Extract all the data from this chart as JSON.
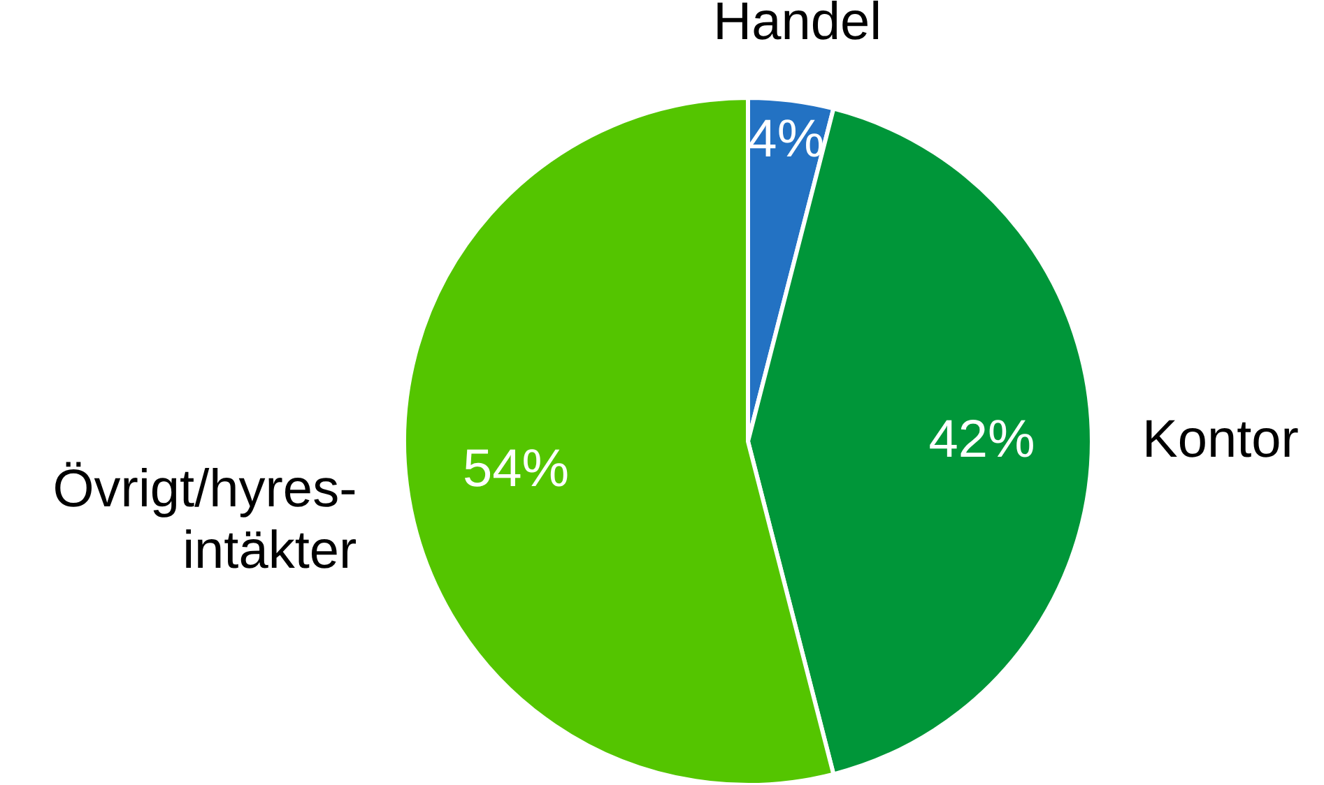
{
  "chart_data": {
    "type": "pie",
    "categories": [
      "Handel",
      "Kontor",
      "Övrigt/hyres-\nintäkter"
    ],
    "values": [
      4,
      42,
      54
    ],
    "colors": [
      "#2372c3",
      "#009639",
      "#54c500"
    ],
    "value_labels": [
      "4%",
      "42%",
      "54%"
    ]
  }
}
